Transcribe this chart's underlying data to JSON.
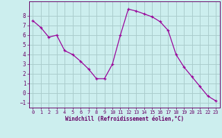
{
  "x": [
    0,
    1,
    2,
    3,
    4,
    5,
    6,
    7,
    8,
    9,
    10,
    11,
    12,
    13,
    14,
    15,
    16,
    17,
    18,
    19,
    20,
    21,
    22,
    23
  ],
  "y": [
    7.5,
    6.8,
    5.8,
    6.0,
    4.4,
    4.0,
    3.3,
    2.5,
    1.5,
    1.5,
    3.0,
    6.0,
    8.7,
    8.5,
    8.2,
    7.9,
    7.4,
    6.5,
    4.0,
    2.7,
    1.7,
    0.7,
    -0.3,
    -0.8
  ],
  "line_color": "#990099",
  "marker": "+",
  "bg_color": "#cceeee",
  "grid_color": "#aacccc",
  "xlabel": "Windchill (Refroidissement éolien,°C)",
  "xlabel_color": "#660066",
  "tick_color": "#660066",
  "ylim": [
    -1.5,
    9.5
  ],
  "xlim": [
    -0.5,
    23.5
  ],
  "yticks": [
    -1,
    0,
    1,
    2,
    3,
    4,
    5,
    6,
    7,
    8
  ],
  "xticks": [
    0,
    1,
    2,
    3,
    4,
    5,
    6,
    7,
    8,
    9,
    10,
    11,
    12,
    13,
    14,
    15,
    16,
    17,
    18,
    19,
    20,
    21,
    22,
    23
  ]
}
